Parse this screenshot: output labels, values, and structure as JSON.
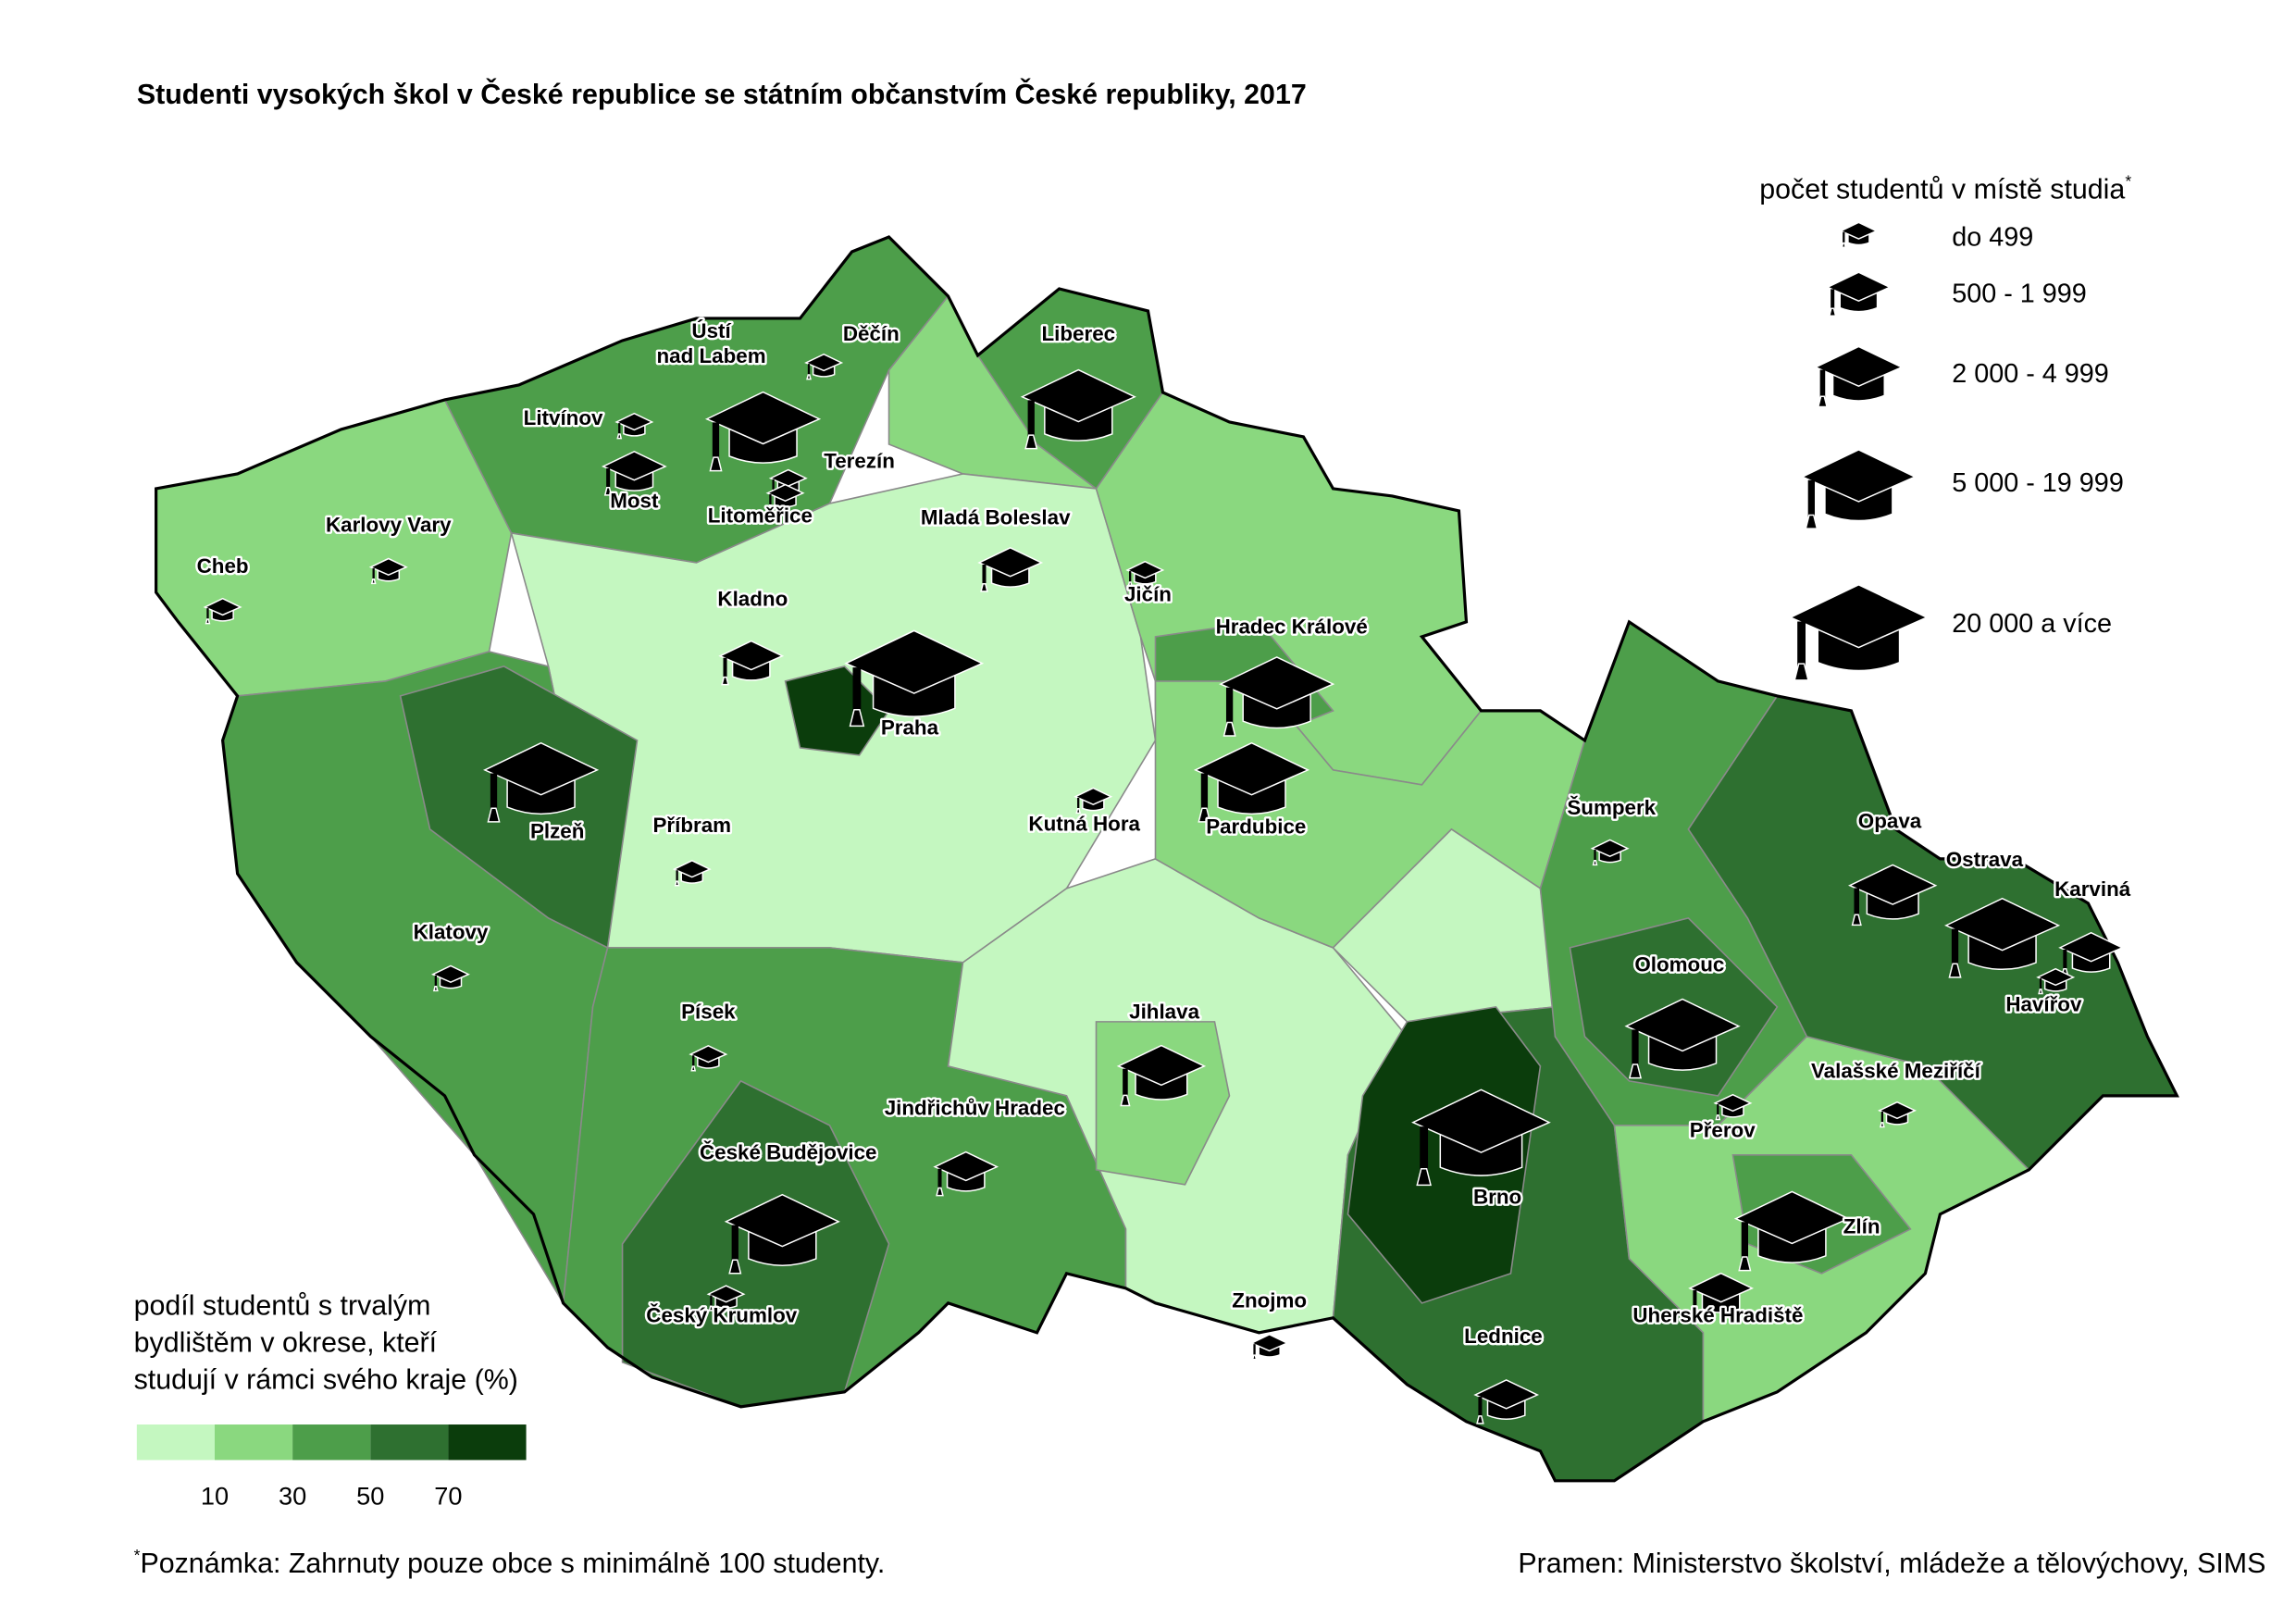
{
  "title": "Studenti vysokých škol v České republice se státním občanstvím České republiky, 2017",
  "footnote_mark": "*",
  "size_legend": {
    "title": "počet studentů v místě studia",
    "classes": [
      "do 499",
      "500 - 1 999",
      "2 000 - 4 999",
      "5 000 - 19 999",
      "20 000 a více"
    ]
  },
  "color_legend": {
    "title": [
      "podíl studentů s trvalým",
      "bydlištěm v okrese, kteří",
      "studují v rámci svého kraje (%)"
    ],
    "colors": [
      "#c4f7c0",
      "#8ad87f",
      "#4d9e4a",
      "#2e7030",
      "#0b3d0c"
    ],
    "ticks": [
      10,
      30,
      50,
      70
    ]
  },
  "cities": [
    {
      "label": [
        "Ústí",
        "nad Labem"
      ],
      "size_class": 3
    },
    {
      "label": "Děčín",
      "size_class": 0
    },
    {
      "label": "Liberec",
      "size_class": 3
    },
    {
      "label": "Litvínov",
      "size_class": 0
    },
    {
      "label": "Most",
      "size_class": 1
    },
    {
      "label": "Terezín",
      "size_class": 0
    },
    {
      "label": "Litoměřice",
      "size_class": 0
    },
    {
      "label": "Karlovy Vary",
      "size_class": 0
    },
    {
      "label": "Cheb",
      "size_class": 0
    },
    {
      "label": "Mladá Boleslav",
      "size_class": 1
    },
    {
      "label": "Jičín",
      "size_class": 0
    },
    {
      "label": "Kladno",
      "size_class": 1
    },
    {
      "label": "Praha",
      "size_class": 4
    },
    {
      "label": "Hradec Králové",
      "size_class": 3
    },
    {
      "label": "Pardubice",
      "size_class": 3
    },
    {
      "label": "Plzeň",
      "size_class": 3
    },
    {
      "label": "Příbram",
      "size_class": 0
    },
    {
      "label": "Kutná Hora",
      "size_class": 0
    },
    {
      "label": "Šumperk",
      "size_class": 0
    },
    {
      "label": "Opava",
      "size_class": 2
    },
    {
      "label": "Ostrava",
      "size_class": 3
    },
    {
      "label": "Karviná",
      "size_class": 1
    },
    {
      "label": "Havířov",
      "size_class": 0
    },
    {
      "label": "Klatovy",
      "size_class": 0
    },
    {
      "label": "Olomouc",
      "size_class": 3
    },
    {
      "label": "Písek",
      "size_class": 0
    },
    {
      "label": "Jihlava",
      "size_class": 2
    },
    {
      "label": "Valašské Meziříčí",
      "size_class": 0
    },
    {
      "label": "Přerov",
      "size_class": 0
    },
    {
      "label": "Jindřichův Hradec",
      "size_class": 1
    },
    {
      "label": "České Budějovice",
      "size_class": 3
    },
    {
      "label": "Brno",
      "size_class": 4
    },
    {
      "label": "Zlín",
      "size_class": 3
    },
    {
      "label": "Znojmo",
      "size_class": 0
    },
    {
      "label": "Uherské Hradiště",
      "size_class": 1
    },
    {
      "label": "Český Krumlov",
      "size_class": 0
    },
    {
      "label": "Lednice",
      "size_class": 1
    }
  ],
  "note": "Poznámka: Zahrnuty pouze obce s minimálně 100 studenty.",
  "source": "Pramen: Ministerstvo školství, mládeže a tělovýchovy, SIMS"
}
